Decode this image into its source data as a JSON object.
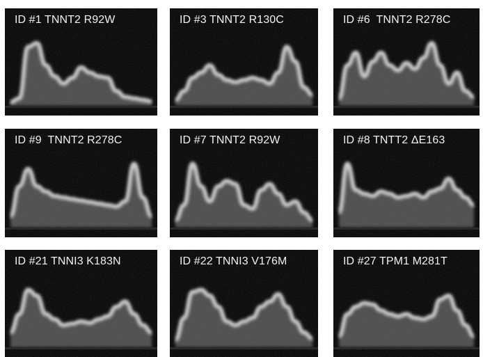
{
  "panels": [
    {
      "label": "ID #1 TNNT2 R92W",
      "profile": [
        0.05,
        0.1,
        0.8,
        0.85,
        0.55,
        0.4,
        0.3,
        0.38,
        0.52,
        0.45,
        0.4,
        0.38,
        0.2,
        0.12,
        0.1,
        0.08,
        0.06
      ]
    },
    {
      "label": "ID #3 TNNT2 R130C",
      "profile": [
        0.08,
        0.2,
        0.38,
        0.45,
        0.55,
        0.42,
        0.35,
        0.32,
        0.35,
        0.38,
        0.35,
        0.3,
        0.45,
        0.8,
        0.6,
        0.25,
        0.15
      ]
    },
    {
      "label": "ID #6  TNNT2 R278C",
      "profile": [
        0.1,
        0.55,
        0.72,
        0.4,
        0.6,
        0.72,
        0.55,
        0.48,
        0.58,
        0.5,
        0.65,
        0.85,
        0.55,
        0.3,
        0.45,
        0.2,
        0.12
      ]
    },
    {
      "label": "ID #9  TNNT2 R278C",
      "profile": [
        0.15,
        0.55,
        0.78,
        0.55,
        0.48,
        0.42,
        0.4,
        0.38,
        0.36,
        0.34,
        0.32,
        0.3,
        0.28,
        0.35,
        0.85,
        0.4,
        0.15
      ]
    },
    {
      "label": "ID #7 TNNT2 R92W",
      "profile": [
        0.1,
        0.3,
        0.85,
        0.55,
        0.35,
        0.55,
        0.62,
        0.58,
        0.3,
        0.25,
        0.5,
        0.58,
        0.45,
        0.3,
        0.35,
        0.2,
        0.1
      ]
    },
    {
      "label": "ID #8 TNTT2 ΔE163",
      "profile": [
        0.2,
        0.85,
        0.5,
        0.45,
        0.42,
        0.48,
        0.45,
        0.4,
        0.42,
        0.45,
        0.4,
        0.48,
        0.52,
        0.65,
        0.5,
        0.4,
        0.3
      ]
    },
    {
      "label": "ID #21 TNNI3 K183N",
      "profile": [
        0.2,
        0.45,
        0.78,
        0.7,
        0.45,
        0.38,
        0.3,
        0.32,
        0.35,
        0.33,
        0.38,
        0.42,
        0.55,
        0.62,
        0.45,
        0.3,
        0.2
      ]
    },
    {
      "label": "ID #22 TNNI3 V176M",
      "profile": [
        0.1,
        0.4,
        0.75,
        0.78,
        0.7,
        0.55,
        0.35,
        0.3,
        0.35,
        0.4,
        0.55,
        0.62,
        0.72,
        0.55,
        0.35,
        0.2,
        0.12
      ]
    },
    {
      "label": "ID #27 TPM1 M281T",
      "profile": [
        0.15,
        0.45,
        0.55,
        0.6,
        0.58,
        0.5,
        0.45,
        0.42,
        0.45,
        0.4,
        0.38,
        0.42,
        0.65,
        0.7,
        0.5,
        0.3,
        0.15
      ]
    }
  ]
}
